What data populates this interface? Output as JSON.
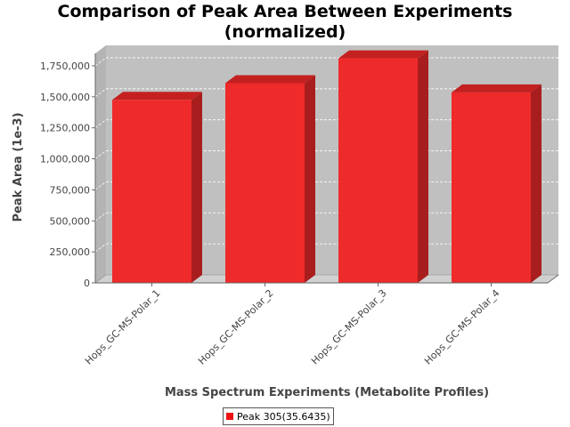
{
  "chart_data": {
    "type": "bar",
    "title": "Comparison of Peak Area Between Experiments",
    "subtitle": "(normalized)",
    "xlabel": "Mass Spectrum Experiments (Metabolite Profiles)",
    "ylabel": "Peak Area (1e-3)",
    "categories": [
      "Hops_GC-MS-Polar_1",
      "Hops_GC-MS-Polar_2",
      "Hops_GC-MS-Polar_3",
      "Hops_GC-MS-Polar_4"
    ],
    "series": [
      {
        "name": "Peak 305(35.6435)",
        "values": [
          1475000,
          1610000,
          1810000,
          1535000
        ]
      }
    ],
    "ylim": [
      0,
      1850000
    ],
    "yticks": [
      0,
      250000,
      500000,
      750000,
      1000000,
      1250000,
      1500000,
      1750000
    ],
    "ytick_labels": [
      "0",
      "250,000",
      "500,000",
      "750,000",
      "1,000,000",
      "1,250,000",
      "1,500,000",
      "1,750,000"
    ],
    "grid": true,
    "legend_position": "bottom",
    "colors": {
      "bar_front": "#ee2a2a",
      "bar_top": "#c42020",
      "bar_side": "#a81e1e",
      "plot_background": "#c0c0c0",
      "plot_wall": "#b4b4b4",
      "plot_floor": "#d0d0d0",
      "gridline": "#ffffff"
    }
  }
}
